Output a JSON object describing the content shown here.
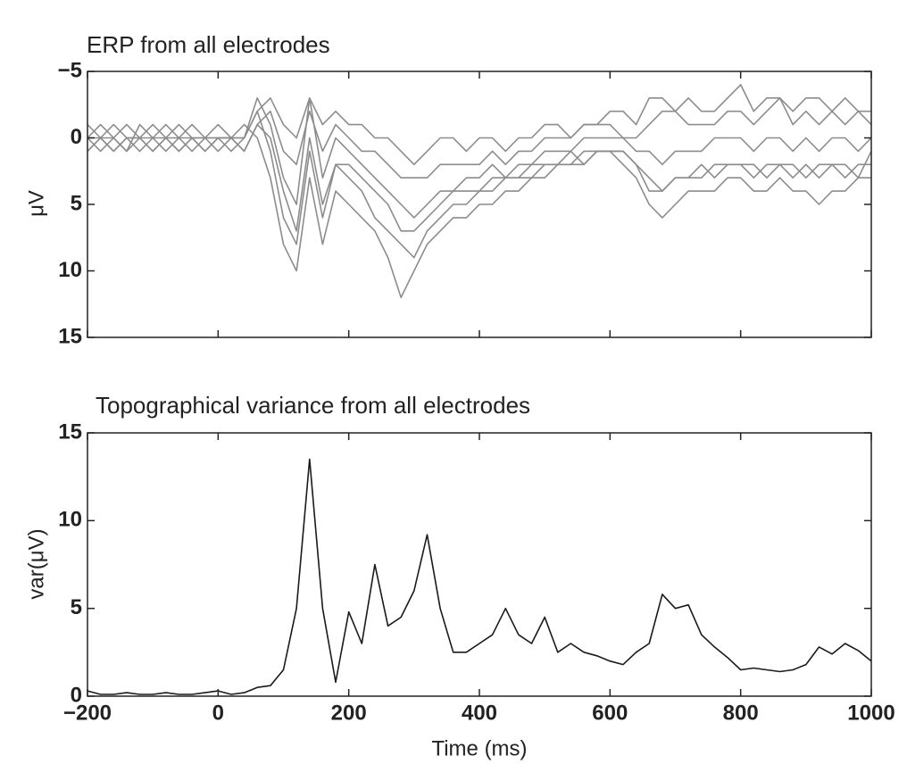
{
  "chart_data": [
    {
      "type": "line",
      "title": "ERP from all electrodes",
      "ylabel": "μV",
      "x": [
        -200,
        -180,
        -160,
        -140,
        -120,
        -100,
        -80,
        -60,
        -40,
        -20,
        0,
        20,
        40,
        60,
        80,
        100,
        120,
        140,
        160,
        180,
        200,
        220,
        240,
        260,
        280,
        300,
        320,
        340,
        360,
        380,
        400,
        420,
        440,
        460,
        480,
        500,
        520,
        540,
        560,
        580,
        600,
        620,
        640,
        660,
        680,
        700,
        720,
        740,
        760,
        780,
        800,
        820,
        840,
        860,
        880,
        900,
        920,
        940,
        960,
        980,
        1000
      ],
      "xlim": [
        -200,
        1000
      ],
      "xticks": [
        -200,
        0,
        200,
        400,
        600,
        800,
        1000
      ],
      "ylim": [
        -5,
        15
      ],
      "y_inverted": true,
      "yticks": [
        {
          "value": -5,
          "label": "−5"
        },
        0,
        5,
        10,
        15
      ],
      "series": [
        {
          "color": "#8c8c8c",
          "values": [
            0,
            1,
            0,
            -1,
            0,
            1,
            0,
            0,
            1,
            0,
            0,
            0,
            -1,
            0,
            3,
            8,
            10,
            3,
            8,
            4,
            5,
            6,
            7,
            9,
            12,
            10,
            8,
            7,
            6,
            6,
            5,
            5,
            4,
            4,
            3,
            3,
            2,
            2,
            2,
            1,
            1,
            2,
            3,
            5,
            6,
            5,
            4,
            4,
            4,
            3,
            3,
            4,
            4,
            3,
            4,
            4,
            5,
            4,
            4,
            3,
            3
          ]
        },
        {
          "color": "#8c8c8c",
          "values": [
            1,
            0,
            -1,
            0,
            1,
            0,
            -1,
            0,
            0,
            1,
            0,
            1,
            0,
            -2,
            1,
            6,
            8,
            1,
            6,
            2,
            3,
            4,
            6,
            7,
            8,
            9,
            7,
            6,
            5,
            5,
            4,
            4,
            3,
            3,
            3,
            2,
            2,
            1,
            2,
            1,
            1,
            1,
            2,
            3,
            4,
            3,
            3,
            2,
            3,
            2,
            2,
            2,
            3,
            2,
            2,
            3,
            2,
            2,
            3,
            2,
            2
          ]
        },
        {
          "color": "#8c8c8c",
          "values": [
            -1,
            0,
            1,
            0,
            0,
            -1,
            0,
            1,
            0,
            0,
            1,
            0,
            0,
            -3,
            -1,
            3,
            5,
            -3,
            3,
            0,
            1,
            2,
            3,
            4,
            5,
            6,
            5,
            4,
            4,
            3,
            3,
            2,
            3,
            2,
            2,
            1,
            1,
            1,
            0,
            0,
            0,
            0,
            1,
            1,
            2,
            1,
            1,
            1,
            0,
            0,
            0,
            1,
            0,
            0,
            1,
            0,
            1,
            0,
            0,
            1,
            0
          ]
        },
        {
          "color": "#8c8c8c",
          "values": [
            0,
            -1,
            0,
            1,
            0,
            0,
            1,
            0,
            -1,
            0,
            0,
            0,
            1,
            -1,
            -2,
            1,
            2,
            -2,
            1,
            -1,
            0,
            1,
            1,
            2,
            3,
            3,
            3,
            2,
            2,
            2,
            2,
            1,
            2,
            1,
            1,
            0,
            0,
            0,
            -1,
            -1,
            -1,
            0,
            0,
            -1,
            -2,
            -2,
            -1,
            -1,
            -1,
            -2,
            -2,
            -1,
            -2,
            -3,
            -1,
            -2,
            -1,
            -2,
            -1,
            -2,
            -1
          ]
        },
        {
          "color": "#8c8c8c",
          "values": [
            1,
            0,
            0,
            1,
            -1,
            0,
            0,
            1,
            0,
            0,
            -1,
            0,
            0,
            -2,
            -3,
            -1,
            0,
            -3,
            -1,
            -2,
            -1,
            -1,
            0,
            0,
            1,
            2,
            1,
            0,
            0,
            1,
            0,
            0,
            1,
            0,
            0,
            -1,
            -1,
            0,
            -1,
            -1,
            -2,
            -2,
            -1,
            -3,
            -3,
            -2,
            -3,
            -2,
            -2,
            -3,
            -4,
            -2,
            -3,
            -3,
            -2,
            -3,
            -3,
            -2,
            -3,
            -2,
            -2
          ]
        },
        {
          "color": "#8c8c8c",
          "values": [
            0,
            0,
            1,
            0,
            0,
            1,
            0,
            -1,
            0,
            1,
            0,
            0,
            1,
            -1,
            0,
            4,
            7,
            0,
            5,
            2,
            2,
            3,
            4,
            5,
            7,
            7,
            6,
            5,
            4,
            4,
            4,
            3,
            3,
            3,
            2,
            2,
            2,
            2,
            1,
            1,
            1,
            1,
            2,
            4,
            4,
            3,
            3,
            3,
            2,
            2,
            2,
            3,
            2,
            2,
            3,
            2,
            3,
            2,
            2,
            3,
            1
          ]
        }
      ]
    },
    {
      "type": "line",
      "title": "Topographical variance from all electrodes",
      "ylabel": "var(μV)",
      "xlabel": "Time (ms)",
      "x": [
        -200,
        -180,
        -160,
        -140,
        -120,
        -100,
        -80,
        -60,
        -40,
        -20,
        0,
        20,
        40,
        60,
        80,
        100,
        120,
        140,
        160,
        180,
        200,
        220,
        240,
        260,
        280,
        300,
        320,
        340,
        360,
        380,
        400,
        420,
        440,
        460,
        480,
        500,
        520,
        540,
        560,
        580,
        600,
        620,
        640,
        660,
        680,
        700,
        720,
        740,
        760,
        780,
        800,
        820,
        840,
        860,
        880,
        900,
        920,
        940,
        960,
        980,
        1000
      ],
      "xlim": [
        -200,
        1000
      ],
      "xticks": [
        {
          "value": -200,
          "label": "−200"
        },
        0,
        200,
        400,
        600,
        800,
        1000
      ],
      "ylim": [
        0,
        15
      ],
      "yticks": [
        0,
        5,
        10,
        15
      ],
      "series": [
        {
          "color": "#1a1a1a",
          "values": [
            0.3,
            0.1,
            0.1,
            0.2,
            0.1,
            0.1,
            0.2,
            0.1,
            0.1,
            0.2,
            0.3,
            0.1,
            0.2,
            0.5,
            0.6,
            1.5,
            5,
            13.5,
            5,
            0.8,
            4.8,
            3,
            7.5,
            4,
            4.5,
            6,
            9.2,
            5,
            2.5,
            2.5,
            3,
            3.5,
            5,
            3.5,
            3,
            4.5,
            2.5,
            3,
            2.5,
            2.3,
            2,
            1.8,
            2.5,
            3,
            5.8,
            5,
            5.2,
            3.5,
            2.8,
            2.2,
            1.5,
            1.6,
            1.5,
            1.4,
            1.5,
            1.8,
            2.8,
            2.4,
            3,
            2.6,
            2
          ]
        }
      ]
    }
  ]
}
